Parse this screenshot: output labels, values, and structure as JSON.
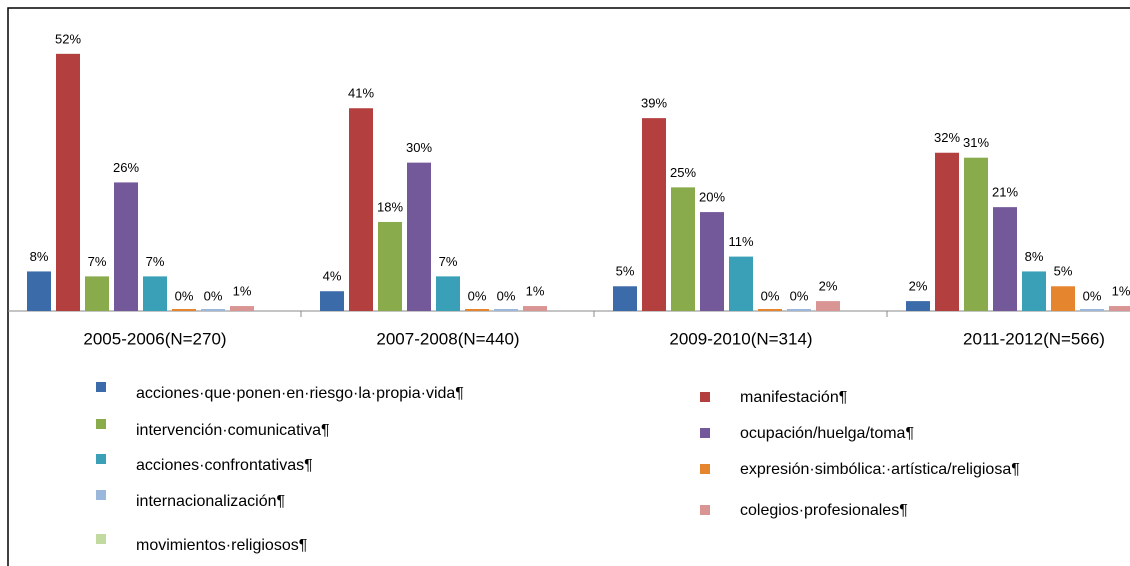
{
  "chart_data": {
    "type": "bar",
    "categories": [
      "2005-2006(N=270)",
      "2007-2008(N=440)",
      "2009-2010(N=314)",
      "2011-2012(N=566)"
    ],
    "ylim": [
      0,
      55
    ],
    "series": [
      {
        "name": "acciones·que·ponen·en·riesgo·la·propia·vida¶",
        "color": "#3b6ba9",
        "values": [
          8,
          4,
          5,
          2
        ],
        "value_labels": [
          "8%",
          "4%",
          "5%",
          "2%"
        ]
      },
      {
        "name": "manifestación¶",
        "color": "#b3403f",
        "values": [
          52,
          41,
          39,
          32
        ],
        "value_labels": [
          "52%",
          "41%",
          "39%",
          "32%"
        ]
      },
      {
        "name": "intervención·comunicativa¶",
        "color": "#8aab4c",
        "values": [
          7,
          18,
          25,
          31
        ],
        "value_labels": [
          "7%",
          "18%",
          "25%",
          "31%"
        ]
      },
      {
        "name": "ocupación/huelga/toma¶",
        "color": "#73589a",
        "values": [
          26,
          30,
          20,
          21
        ],
        "value_labels": [
          "26%",
          "30%",
          "20%",
          "21%"
        ]
      },
      {
        "name": "acciones·confrontativas¶",
        "color": "#3aa0b8",
        "values": [
          7,
          7,
          11,
          8
        ],
        "value_labels": [
          "7%",
          "7%",
          "11%",
          "8%"
        ]
      },
      {
        "name": "expresión·simbólica:·artística/religiosa¶",
        "color": "#e5862f",
        "values": [
          0,
          0,
          0,
          5
        ],
        "value_labels": [
          "0%",
          "0%",
          "0%",
          "5%"
        ]
      },
      {
        "name": "internacionalización¶",
        "color": "#9bb7db",
        "values": [
          0,
          0,
          0,
          0
        ],
        "value_labels": [
          "0%",
          "0%",
          "0%",
          "0%"
        ]
      },
      {
        "name": "colegios·profesionales¶",
        "color": "#d99593",
        "values": [
          1,
          1,
          2,
          1
        ],
        "value_labels": [
          "1%",
          "1%",
          "2%",
          "1%"
        ]
      },
      {
        "name": "movimientos·religiosos¶",
        "color": "#c2d9a0",
        "values": [
          null,
          null,
          null,
          null
        ]
      }
    ]
  }
}
